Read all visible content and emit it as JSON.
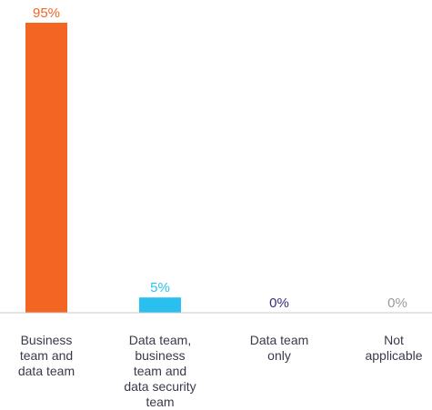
{
  "chart_data": {
    "type": "bar",
    "categories": [
      "Business team and data team",
      "Data team, business team and data security team",
      "Data team only",
      "Not applicable"
    ],
    "values": [
      95,
      5,
      0,
      0
    ],
    "value_labels": [
      "95%",
      "5%",
      "0%",
      "0%"
    ],
    "colors": [
      "#f26522",
      "#29c0f0",
      "#3b2a7a",
      "#9a9a9a"
    ],
    "ylim": [
      0,
      100
    ],
    "grid": false,
    "legend": "none",
    "title": "",
    "xlabel": "",
    "ylabel": ""
  },
  "labels": {
    "cat0_lines": [
      "Business",
      "team and",
      "data team"
    ],
    "cat1_lines": [
      "Data team,",
      "business",
      "team and",
      "data security",
      "team"
    ],
    "cat2_lines": [
      "Data team",
      "only"
    ],
    "cat3_lines": [
      "Not",
      "applicable"
    ]
  }
}
